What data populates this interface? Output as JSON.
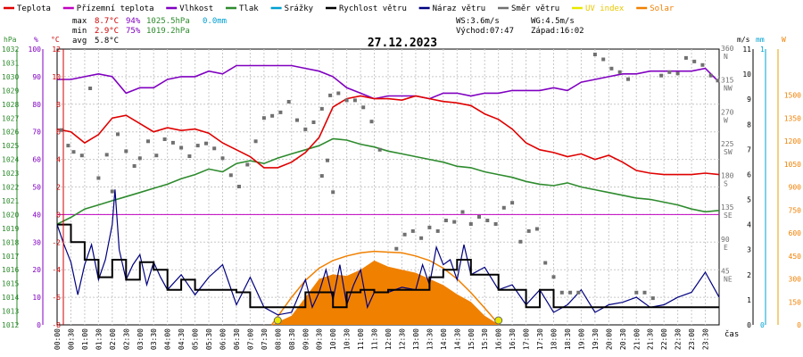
{
  "legend": [
    {
      "label": "Teplota",
      "color": "#e00000"
    },
    {
      "label": "Přízemní teplota",
      "color": "#c000c0"
    },
    {
      "label": "Vlhkost",
      "color": "#8000c0"
    },
    {
      "label": "Tlak",
      "color": "#2e8b2e"
    },
    {
      "label": "Srážky",
      "color": "#00a0d0"
    },
    {
      "label": "Rychlost větru",
      "color": "#000000"
    },
    {
      "label": "Náraz větru",
      "color": "#000080"
    },
    {
      "label": "Směr větru",
      "color": "#707070"
    },
    {
      "label": "UV index",
      "color": "#e8e800"
    },
    {
      "label": "Solar",
      "color": "#f08000"
    }
  ],
  "stats": {
    "max": {
      "label": "max",
      "temp": "8.7°C",
      "hum": "94%",
      "press": "1025.5hPa",
      "rain": "0.0mm"
    },
    "min": {
      "label": "min",
      "temp": "2.9°C",
      "hum": "75%",
      "press": "1019.2hPa"
    },
    "avg": {
      "label": "avg",
      "temp": "5.8°C"
    },
    "wind": {
      "ws": "WS:3.6m/s",
      "wg": "WG:4.5m/s",
      "sunrise": "Východ:07:47",
      "sunset": "Západ:16:02"
    }
  },
  "chart_data": {
    "type": "line",
    "title": "27.12.2023",
    "xlabel": "čas",
    "x_ticks": [
      "00:00",
      "00:30",
      "01:00",
      "01:30",
      "02:00",
      "02:30",
      "03:00",
      "03:30",
      "04:00",
      "04:30",
      "05:00",
      "05:30",
      "06:00",
      "06:30",
      "07:00",
      "07:30",
      "08:00",
      "08:30",
      "09:00",
      "09:30",
      "10:00",
      "10:30",
      "11:00",
      "11:30",
      "12:00",
      "12:30",
      "13:00",
      "13:30",
      "14:00",
      "14:30",
      "15:00",
      "15:30",
      "16:00",
      "16:30",
      "17:00",
      "17:30",
      "18:00",
      "18:30",
      "19:00",
      "19:30",
      "20:00",
      "20:30",
      "21:00",
      "21:30",
      "22:00",
      "22:30",
      "23:00",
      "23:30"
    ],
    "axes": {
      "pressure": {
        "unit": "hPa",
        "range": [
          1012,
          1032
        ],
        "ticks": [
          "1012",
          "1013",
          "1014",
          "1015",
          "1016",
          "1017",
          "1018",
          "1019",
          "1020",
          "1021",
          "1022",
          "1023",
          "1024",
          "1025",
          "1026",
          "1027",
          "1028",
          "1029",
          "1030",
          "1031",
          "1032"
        ]
      },
      "humidity": {
        "unit": "%",
        "range": [
          0,
          100
        ],
        "ticks": [
          "0",
          "10",
          "20",
          "30",
          "40",
          "50",
          "60",
          "70",
          "80",
          "90",
          "100"
        ]
      },
      "temperature": {
        "unit": "°C",
        "range": [
          -8,
          12
        ],
        "ticks": [
          "-8",
          "-6",
          "-4",
          "-2",
          "0",
          "2",
          "4",
          "6",
          "8",
          "10",
          "12"
        ]
      },
      "direction": {
        "ticks": [
          "0",
          "45",
          "90",
          "135",
          "180",
          "225",
          "270",
          "315",
          "360"
        ],
        "letters": [
          "N",
          "NE",
          "E",
          "SE",
          "S",
          "SW",
          "W",
          "NW",
          "N"
        ]
      },
      "wind": {
        "unit": "m/s",
        "range": [
          0,
          11
        ],
        "ticks": [
          "0",
          "1",
          "2",
          "3",
          "4",
          "5",
          "6",
          "7",
          "8",
          "9",
          "10",
          "11"
        ]
      },
      "rain": {
        "unit": "mm",
        "ticks": [
          "0",
          "1"
        ]
      },
      "solar": {
        "unit": "W",
        "range": [
          0,
          1800
        ],
        "ticks": [
          "0",
          "150",
          "300",
          "450",
          "600",
          "750",
          "900",
          "1050",
          "1200",
          "1350",
          "1500"
        ]
      }
    },
    "series": [
      {
        "name": "Teplota",
        "color": "#e00000",
        "x": [
          0,
          0.5,
          1,
          1.5,
          2,
          2.5,
          3,
          3.5,
          4,
          4.5,
          5,
          5.5,
          6,
          6.5,
          7,
          7.5,
          8,
          8.5,
          9,
          9.5,
          10,
          10.5,
          11,
          11.5,
          12,
          12.5,
          13,
          13.5,
          14,
          14.5,
          15,
          15.5,
          16,
          16.5,
          17,
          17.5,
          18,
          18.5,
          19,
          19.5,
          20,
          20.5,
          21,
          21.5,
          22,
          22.5,
          23,
          23.5,
          24
        ],
        "values": [
          6.2,
          6.0,
          5.2,
          5.8,
          7.0,
          7.2,
          6.6,
          6.0,
          6.3,
          6.1,
          6.2,
          5.9,
          5.2,
          4.7,
          4.2,
          3.4,
          3.4,
          3.8,
          4.5,
          5.6,
          7.8,
          8.4,
          8.6,
          8.4,
          8.4,
          8.3,
          8.6,
          8.4,
          8.2,
          8.1,
          7.9,
          7.3,
          6.9,
          6.2,
          5.2,
          4.7,
          4.5,
          4.2,
          4.4,
          4.0,
          4.3,
          3.8,
          3.2,
          3.0,
          2.9,
          2.9,
          2.9,
          3.0,
          2.9
        ]
      },
      {
        "name": "Vlhkost",
        "color": "#8000c0",
        "x": [
          0,
          0.5,
          1,
          1.5,
          2,
          2.5,
          3,
          3.5,
          4,
          4.5,
          5,
          5.5,
          6,
          6.5,
          7,
          7.5,
          8,
          8.5,
          9,
          9.5,
          10,
          10.5,
          11,
          11.5,
          12,
          12.5,
          13,
          13.5,
          14,
          14.5,
          15,
          15.5,
          16,
          16.5,
          17,
          17.5,
          18,
          18.5,
          19,
          19.5,
          20,
          20.5,
          21,
          21.5,
          22,
          22.5,
          23,
          23.5,
          24
        ],
        "values": [
          89,
          89,
          90,
          91,
          90,
          84,
          86,
          86,
          89,
          90,
          90,
          92,
          91,
          94,
          94,
          94,
          94,
          94,
          93,
          92,
          90,
          86,
          84,
          82,
          83,
          83,
          83,
          82,
          84,
          84,
          83,
          84,
          84,
          85,
          85,
          85,
          86,
          85,
          88,
          89,
          90,
          91,
          91,
          92,
          92,
          92,
          92,
          93,
          88
        ]
      },
      {
        "name": "Tlak",
        "color": "#2e8b2e",
        "x": [
          0,
          0.5,
          1,
          1.5,
          2,
          2.5,
          3,
          3.5,
          4,
          4.5,
          5,
          5.5,
          6,
          6.5,
          7,
          7.5,
          8,
          8.5,
          9,
          9.5,
          10,
          10.5,
          11,
          11.5,
          12,
          12.5,
          13,
          13.5,
          14,
          14.5,
          15,
          15.5,
          16,
          16.5,
          17,
          17.5,
          18,
          18.5,
          19,
          19.5,
          20,
          20.5,
          21,
          21.5,
          22,
          22.5,
          23,
          23.5,
          24
        ],
        "values": [
          1019.3,
          1019.8,
          1020.4,
          1020.7,
          1021.0,
          1021.3,
          1021.6,
          1021.9,
          1022.2,
          1022.6,
          1022.9,
          1023.3,
          1023.1,
          1023.7,
          1023.9,
          1023.7,
          1024.1,
          1024.4,
          1024.7,
          1025.0,
          1025.5,
          1025.4,
          1025.1,
          1024.9,
          1024.6,
          1024.4,
          1024.2,
          1024.0,
          1023.8,
          1023.5,
          1023.4,
          1023.1,
          1022.9,
          1022.7,
          1022.4,
          1022.2,
          1022.1,
          1022.3,
          1022.0,
          1021.8,
          1021.6,
          1021.4,
          1021.2,
          1021.1,
          1020.9,
          1020.7,
          1020.4,
          1020.2,
          1020.3
        ]
      },
      {
        "name": "Přízemní teplota",
        "color": "#c000c0",
        "x": [
          0,
          24
        ],
        "values": [
          0,
          0
        ]
      },
      {
        "name": "Rychlost větru",
        "color": "#000000",
        "x": [
          0,
          0.5,
          1,
          1.5,
          2,
          2.5,
          3,
          3.5,
          4,
          4.5,
          5,
          5.5,
          6,
          6.5,
          7,
          7.5,
          8,
          8.5,
          9,
          9.5,
          10,
          10.5,
          11,
          11.5,
          12,
          12.5,
          13,
          13.5,
          14,
          14.5,
          15,
          15.5,
          16,
          16.5,
          17,
          17.5,
          18,
          18.5,
          19,
          19.5,
          20,
          20.5,
          21,
          21.5,
          22,
          22.5,
          23,
          23.5,
          24
        ],
        "values": [
          4,
          3.3,
          2.6,
          1.9,
          2.6,
          1.8,
          2.5,
          2.2,
          1.4,
          1.8,
          1.4,
          1.4,
          1.4,
          1.3,
          0.7,
          0.7,
          0.7,
          0.7,
          1.3,
          1.3,
          0.7,
          1.3,
          1.4,
          1.3,
          1.4,
          1.4,
          1.4,
          1.9,
          2.2,
          2.6,
          2.0,
          2.0,
          1.4,
          1.4,
          0.7,
          1.4,
          0.7,
          0.7,
          0.7,
          0.7,
          0.7,
          0.7,
          0.7,
          0.7,
          0.7,
          0.7,
          0.7,
          0.7,
          0.7
        ]
      },
      {
        "name": "Náraz větru",
        "color": "#000080",
        "x": [
          0,
          0.25,
          0.5,
          0.75,
          1,
          1.25,
          1.5,
          1.75,
          2,
          2.1,
          2.25,
          2.5,
          2.75,
          3,
          3.25,
          3.5,
          3.75,
          4,
          4.5,
          5,
          5.5,
          6,
          6.5,
          7,
          7.5,
          8,
          8.5,
          9,
          9.25,
          9.5,
          9.75,
          10,
          10.25,
          10.5,
          10.75,
          11,
          11.25,
          11.5,
          12,
          12.5,
          13,
          13.25,
          13.5,
          13.75,
          14,
          14.25,
          14.5,
          14.75,
          15,
          15.5,
          16,
          16.5,
          17,
          17.5,
          18,
          18.5,
          19,
          19.5,
          20,
          20.5,
          21,
          21.5,
          22,
          22.5,
          23,
          23.5,
          24
        ],
        "values": [
          4,
          3.2,
          2.5,
          1.2,
          2.4,
          3.2,
          1.8,
          2.6,
          4.0,
          5.4,
          3.0,
          1.8,
          2.4,
          2.8,
          1.6,
          2.5,
          1.9,
          1.4,
          2.0,
          1.2,
          1.9,
          2.4,
          0.8,
          1.9,
          0.7,
          0.4,
          0.5,
          1.8,
          0.7,
          1.3,
          2.2,
          1.0,
          2.4,
          0.8,
          1.6,
          2.2,
          0.7,
          1.3,
          1.3,
          1.5,
          1.4,
          2.4,
          1.6,
          3.1,
          2.4,
          2.6,
          1.8,
          3.2,
          2.0,
          2.3,
          1.4,
          1.6,
          0.8,
          1.4,
          0.5,
          0.8,
          1.4,
          0.5,
          0.8,
          0.9,
          1.1,
          0.7,
          0.8,
          1.1,
          1.3,
          2.1,
          1.1
        ]
      },
      {
        "name": "Solar",
        "color": "#f08000",
        "x": [
          7.78,
          8.5,
          9,
          9.5,
          10,
          10.5,
          11,
          11.5,
          12,
          12.5,
          13,
          13.5,
          14,
          14.5,
          15,
          15.5,
          16.03
        ],
        "values": [
          0,
          60,
          180,
          300,
          330,
          320,
          360,
          420,
          380,
          360,
          340,
          300,
          260,
          200,
          150,
          60,
          0
        ]
      },
      {
        "name": "Solar max",
        "color": "#f08000",
        "x": [
          7.78,
          8.5,
          9,
          9.5,
          10,
          10.5,
          11,
          11.5,
          12,
          12.5,
          13,
          13.5,
          14,
          14.5,
          15,
          15.5,
          16.03
        ],
        "values": [
          0,
          180,
          290,
          370,
          420,
          450,
          470,
          480,
          475,
          470,
          450,
          420,
          370,
          300,
          210,
          110,
          0
        ]
      },
      {
        "name": "Směr větru",
        "color": "#707070",
        "points": [
          [
            0.15,
            248
          ],
          [
            0.4,
            226
          ],
          [
            0.6,
            217
          ],
          [
            0.9,
            212
          ],
          [
            1.2,
            307
          ],
          [
            1.5,
            180
          ],
          [
            1.8,
            213
          ],
          [
            2.0,
            161
          ],
          [
            2.2,
            242
          ],
          [
            2.5,
            218
          ],
          [
            2.8,
            197
          ],
          [
            3.0,
            208
          ],
          [
            3.3,
            232
          ],
          [
            3.6,
            212
          ],
          [
            3.9,
            235
          ],
          [
            4.2,
            230
          ],
          [
            4.5,
            223
          ],
          [
            4.8,
            211
          ],
          [
            5.1,
            226
          ],
          [
            5.4,
            229
          ],
          [
            5.7,
            222
          ],
          [
            6.0,
            208
          ],
          [
            6.3,
            184
          ],
          [
            6.6,
            168
          ],
          [
            6.9,
            199
          ],
          [
            7.2,
            232
          ],
          [
            7.5,
            265
          ],
          [
            7.8,
            268
          ],
          [
            8.1,
            273
          ],
          [
            8.4,
            288
          ],
          [
            8.7,
            262
          ],
          [
            9.0,
            249
          ],
          [
            9.3,
            259
          ],
          [
            9.6,
            278
          ],
          [
            9.9,
            297
          ],
          [
            10.2,
            300
          ],
          [
            10.5,
            290
          ],
          [
            10.8,
            290
          ],
          [
            11.1,
            280
          ],
          [
            11.4,
            260
          ],
          [
            11.7,
            220
          ],
          [
            9.6,
            183
          ],
          [
            9.8,
            205
          ],
          [
            10.0,
            160
          ],
          [
            12.3,
            80
          ],
          [
            12.6,
            100
          ],
          [
            12.9,
            105
          ],
          [
            13.2,
            95
          ],
          [
            13.5,
            110
          ],
          [
            13.8,
            105
          ],
          [
            14.1,
            120
          ],
          [
            14.4,
            118
          ],
          [
            14.7,
            132
          ],
          [
            15.0,
            115
          ],
          [
            15.3,
            125
          ],
          [
            15.6,
            120
          ],
          [
            15.9,
            115
          ],
          [
            16.2,
            138
          ],
          [
            16.5,
            145
          ],
          [
            16.8,
            90
          ],
          [
            17.1,
            105
          ],
          [
            17.4,
            108
          ],
          [
            17.7,
            60
          ],
          [
            18.0,
            40
          ],
          [
            18.3,
            18
          ],
          [
            18.6,
            18
          ],
          [
            18.9,
            18
          ],
          [
            19.5,
            355
          ],
          [
            19.8,
            348
          ],
          [
            20.1,
            335
          ],
          [
            20.4,
            330
          ],
          [
            20.7,
            320
          ],
          [
            21.0,
            18
          ],
          [
            21.3,
            18
          ],
          [
            21.6,
            10
          ],
          [
            21.9,
            325
          ],
          [
            22.2,
            330
          ],
          [
            22.5,
            328
          ],
          [
            22.8,
            350
          ],
          [
            23.1,
            345
          ],
          [
            23.4,
            340
          ],
          [
            23.7,
            325
          ],
          [
            23.95,
            318
          ]
        ]
      },
      {
        "name": "UV index",
        "color": "#e8e800",
        "x": [
          8.0,
          16.0
        ],
        "values": [
          0,
          0
        ]
      }
    ]
  }
}
